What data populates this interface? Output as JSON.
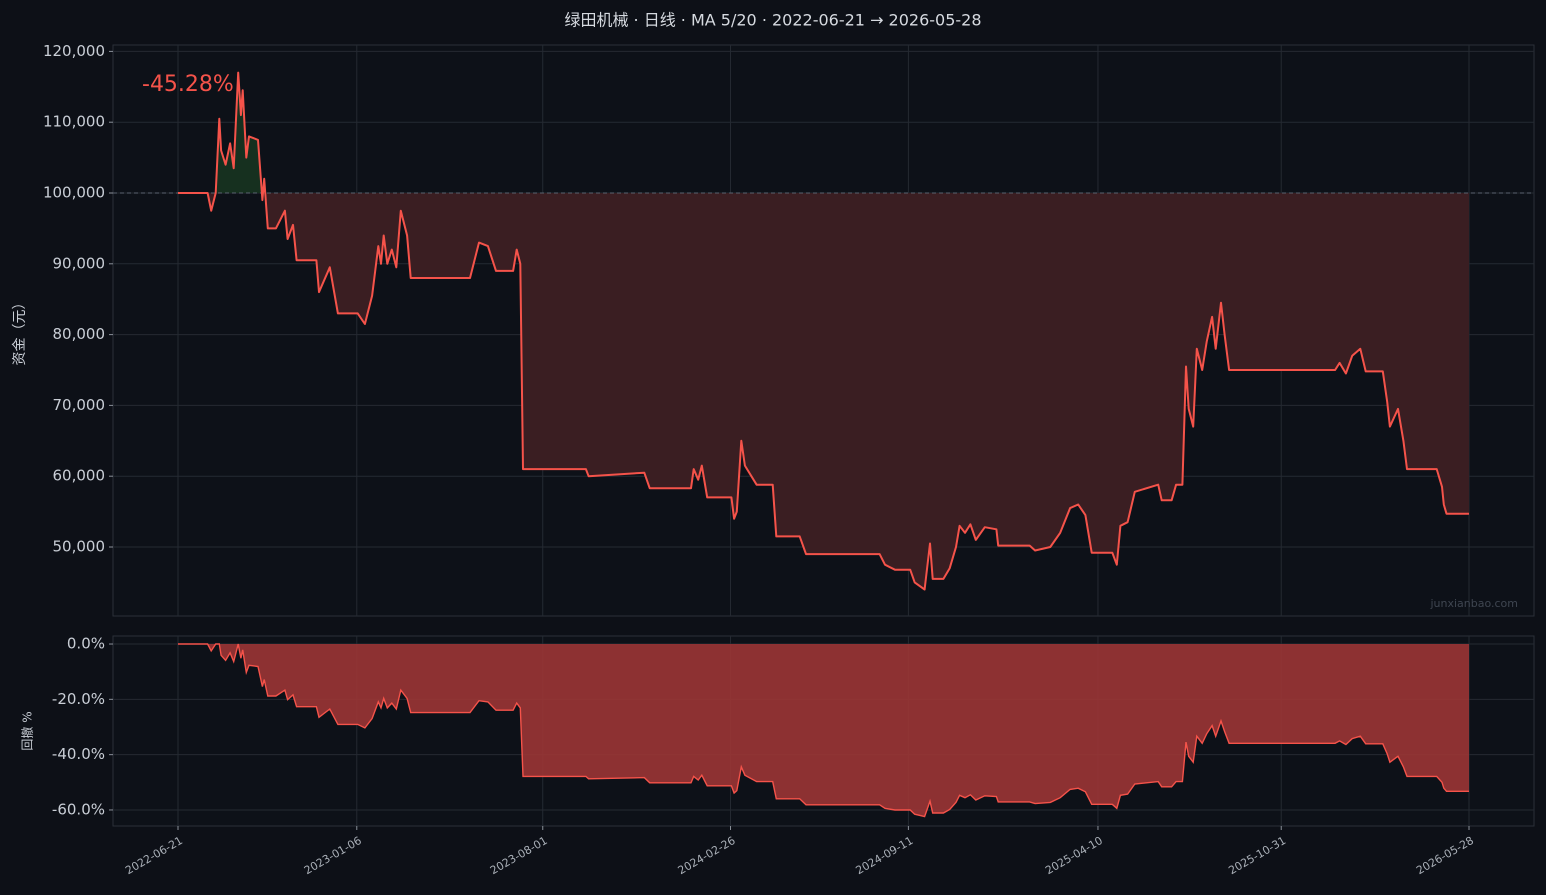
{
  "chart_data": [
    {
      "type": "line",
      "title": "绿田机械 · 日线 · MA 5/20 · 2022-06-21 → 2026-05-28",
      "ylabel": "资金（元）",
      "annotation": "-45.28%",
      "watermark": "junxianbao.com",
      "color": "#f5534a",
      "fill_above": "#16301f",
      "fill_below": "#3a1e22",
      "baseline": 100000,
      "grid": true,
      "xlim": [
        "2022-06-21",
        "2026-05-28"
      ],
      "xticks": [
        "2022-06-21",
        "2023-01-06",
        "2023-08-01",
        "2024-02-26",
        "2024-09-11",
        "2025-04-10",
        "2025-10-31",
        "2026-05-28"
      ],
      "ylim": [
        40254,
        120904
      ],
      "yticks": [
        {
          "value": 50000,
          "label": "50,000"
        },
        {
          "value": 60000,
          "label": "60,000"
        },
        {
          "value": 70000,
          "label": "70,000"
        },
        {
          "value": 80000,
          "label": "80,000"
        },
        {
          "value": 90000,
          "label": "90,000"
        },
        {
          "value": 100000,
          "label": "100,000"
        },
        {
          "value": 110000,
          "label": "110,000"
        },
        {
          "value": 120000,
          "label": "120,000"
        }
      ],
      "x": [
        "2022-06-21",
        "2022-07-24",
        "2022-07-28",
        "2022-08-02",
        "2022-08-06",
        "2022-08-08",
        "2022-08-13",
        "2022-08-18",
        "2022-08-22",
        "2022-08-27",
        "2022-08-30",
        "2022-09-01",
        "2022-09-05",
        "2022-09-08",
        "2022-09-18",
        "2022-09-23",
        "2022-09-25",
        "2022-09-29",
        "2022-10-08",
        "2022-10-18",
        "2022-10-21",
        "2022-10-27",
        "2022-10-31",
        "2022-11-22",
        "2022-11-25",
        "2022-12-07",
        "2022-12-16",
        "2023-01-07",
        "2023-01-15",
        "2023-01-23",
        "2023-01-30",
        "2023-02-02",
        "2023-02-05",
        "2023-02-09",
        "2023-02-14",
        "2023-02-19",
        "2023-02-24",
        "2023-03-03",
        "2023-03-07",
        "2023-05-12",
        "2023-05-22",
        "2023-06-01",
        "2023-06-10",
        "2023-06-29",
        "2023-07-03",
        "2023-07-07",
        "2023-07-10",
        "2023-09-18",
        "2023-09-21",
        "2023-11-22",
        "2023-11-28",
        "2024-01-13",
        "2024-01-16",
        "2024-01-21",
        "2024-01-25",
        "2024-01-31",
        "2024-02-27",
        "2024-03-01",
        "2024-03-04",
        "2024-03-09",
        "2024-03-13",
        "2024-03-26",
        "2024-04-13",
        "2024-04-17",
        "2024-05-13",
        "2024-05-20",
        "2024-08-10",
        "2024-08-16",
        "2024-08-27",
        "2024-09-13",
        "2024-09-18",
        "2024-09-29",
        "2024-10-05",
        "2024-10-08",
        "2024-10-20",
        "2024-10-27",
        "2024-11-03",
        "2024-11-07",
        "2024-11-13",
        "2024-11-19",
        "2024-11-25",
        "2024-12-05",
        "2024-12-18",
        "2024-12-20",
        "2025-01-24",
        "2025-01-30",
        "2025-02-16",
        "2025-02-27",
        "2025-03-10",
        "2025-03-19",
        "2025-03-27",
        "2025-04-03",
        "2025-04-26",
        "2025-05-01",
        "2025-05-05",
        "2025-05-13",
        "2025-05-21",
        "2025-06-16",
        "2025-06-20",
        "2025-07-01",
        "2025-07-06",
        "2025-07-13",
        "2025-07-17",
        "2025-07-20",
        "2025-07-25",
        "2025-07-29",
        "2025-08-04",
        "2025-08-09",
        "2025-08-15",
        "2025-08-19",
        "2025-08-25",
        "2025-08-29",
        "2025-09-03",
        "2025-12-30",
        "2026-01-04",
        "2026-01-11",
        "2026-01-18",
        "2026-01-27",
        "2026-02-02",
        "2026-02-21",
        "2026-02-26",
        "2026-03-01",
        "2026-03-10",
        "2026-03-16",
        "2026-03-20",
        "2026-04-22",
        "2026-04-28",
        "2026-04-30",
        "2026-05-03",
        "2026-05-28"
      ],
      "values": [
        100000,
        100000,
        97500,
        100000,
        110500,
        106000,
        104000,
        107000,
        103500,
        117000,
        111000,
        114500,
        105000,
        108000,
        107500,
        99000,
        102000,
        95000,
        95000,
        97500,
        93500,
        95500,
        90500,
        90500,
        86000,
        89500,
        83000,
        83000,
        81500,
        85500,
        92500,
        90000,
        94000,
        90000,
        92000,
        89500,
        97500,
        94000,
        88000,
        88000,
        93000,
        92500,
        89000,
        89000,
        92000,
        90000,
        61000,
        61000,
        60000,
        60500,
        58300,
        58300,
        61000,
        59500,
        61500,
        57000,
        57000,
        54000,
        55000,
        65000,
        61500,
        58800,
        58800,
        51500,
        51500,
        49000,
        49000,
        47500,
        46800,
        46800,
        45000,
        44000,
        50500,
        45500,
        45500,
        47000,
        50000,
        53000,
        52000,
        53200,
        51000,
        52800,
        52500,
        50200,
        50200,
        49500,
        50000,
        52000,
        55500,
        56000,
        54500,
        49200,
        49200,
        47500,
        53000,
        53500,
        57800,
        58800,
        56600,
        56600,
        58800,
        58800,
        75500,
        69500,
        67000,
        78000,
        75000,
        79000,
        82500,
        78000,
        84500,
        80000,
        75000,
        75000,
        76000,
        74500,
        77000,
        78000,
        74800,
        74800,
        70500,
        67000,
        69500,
        65000,
        61000,
        61000,
        58500,
        56000,
        54700,
        54700
      ]
    },
    {
      "type": "area",
      "ylabel": "回撤 %",
      "color": "#f5534a",
      "fill": "#9b3535",
      "grid": true,
      "xlim": [
        "2022-06-21",
        "2026-05-28"
      ],
      "xticks": [
        "2022-06-21",
        "2023-01-06",
        "2023-08-01",
        "2024-02-26",
        "2024-09-11",
        "2025-04-10",
        "2025-10-31",
        "2026-05-28"
      ],
      "ylim": [
        -65.8,
        2.9
      ],
      "yticks": [
        {
          "value": -60,
          "label": "-60.0%"
        },
        {
          "value": -40,
          "label": "-40.0%"
        },
        {
          "value": -20,
          "label": "-20.0%"
        },
        {
          "value": 0,
          "label": "0.0%"
        }
      ],
      "x": [
        "2022-06-21",
        "2022-07-24",
        "2022-07-28",
        "2022-08-02",
        "2022-08-06",
        "2022-08-08",
        "2022-08-13",
        "2022-08-18",
        "2022-08-22",
        "2022-08-27",
        "2022-08-30",
        "2022-09-01",
        "2022-09-05",
        "2022-09-08",
        "2022-09-18",
        "2022-09-23",
        "2022-09-25",
        "2022-09-29",
        "2022-10-08",
        "2022-10-18",
        "2022-10-21",
        "2022-10-27",
        "2022-10-31",
        "2022-11-22",
        "2022-11-25",
        "2022-12-07",
        "2022-12-16",
        "2023-01-07",
        "2023-01-15",
        "2023-01-23",
        "2023-01-30",
        "2023-02-02",
        "2023-02-05",
        "2023-02-09",
        "2023-02-14",
        "2023-02-19",
        "2023-02-24",
        "2023-03-03",
        "2023-03-07",
        "2023-05-12",
        "2023-05-22",
        "2023-06-01",
        "2023-06-10",
        "2023-06-29",
        "2023-07-03",
        "2023-07-07",
        "2023-07-10",
        "2023-09-18",
        "2023-09-21",
        "2023-11-22",
        "2023-11-28",
        "2024-01-13",
        "2024-01-16",
        "2024-01-21",
        "2024-01-25",
        "2024-01-31",
        "2024-02-27",
        "2024-03-01",
        "2024-03-04",
        "2024-03-09",
        "2024-03-13",
        "2024-03-26",
        "2024-04-13",
        "2024-04-17",
        "2024-05-13",
        "2024-05-20",
        "2024-08-10",
        "2024-08-16",
        "2024-08-27",
        "2024-09-13",
        "2024-09-18",
        "2024-09-29",
        "2024-10-05",
        "2024-10-08",
        "2024-10-20",
        "2024-10-27",
        "2024-11-03",
        "2024-11-07",
        "2024-11-13",
        "2024-11-19",
        "2024-11-25",
        "2024-12-05",
        "2024-12-18",
        "2024-12-20",
        "2025-01-24",
        "2025-01-30",
        "2025-02-16",
        "2025-02-27",
        "2025-03-10",
        "2025-03-19",
        "2025-03-27",
        "2025-04-03",
        "2025-04-26",
        "2025-05-01",
        "2025-05-05",
        "2025-05-13",
        "2025-05-21",
        "2025-06-16",
        "2025-06-20",
        "2025-07-01",
        "2025-07-06",
        "2025-07-13",
        "2025-07-17",
        "2025-07-20",
        "2025-07-25",
        "2025-07-29",
        "2025-08-04",
        "2025-08-09",
        "2025-08-15",
        "2025-08-19",
        "2025-08-25",
        "2025-08-29",
        "2025-09-03",
        "2025-12-30",
        "2026-01-04",
        "2026-01-11",
        "2026-01-18",
        "2026-01-27",
        "2026-02-02",
        "2026-02-21",
        "2026-02-26",
        "2026-03-01",
        "2026-03-10",
        "2026-03-16",
        "2026-03-20",
        "2026-04-22",
        "2026-04-28",
        "2026-04-30",
        "2026-05-03",
        "2026-05-28"
      ],
      "values": [
        0,
        0,
        -2.5,
        0,
        0,
        -4.07,
        -5.88,
        -3.17,
        -6.33,
        0,
        -5.13,
        -2.14,
        -10.26,
        -7.69,
        -8.12,
        -15.38,
        -12.82,
        -18.8,
        -18.8,
        -16.67,
        -20.09,
        -18.38,
        -22.65,
        -22.65,
        -26.5,
        -23.5,
        -29.06,
        -29.06,
        -30.34,
        -26.92,
        -20.94,
        -23.08,
        -19.66,
        -23.08,
        -21.37,
        -23.5,
        -16.67,
        -19.66,
        -24.79,
        -24.79,
        -20.51,
        -20.94,
        -23.93,
        -23.93,
        -21.37,
        -23.08,
        -47.86,
        -47.86,
        -48.72,
        -48.29,
        -50.17,
        -50.17,
        -47.86,
        -49.15,
        -47.44,
        -51.28,
        -51.28,
        -53.85,
        -52.99,
        -44.44,
        -47.44,
        -49.74,
        -49.74,
        -55.98,
        -55.98,
        -58.12,
        -58.12,
        -59.4,
        -60,
        -60,
        -61.54,
        -62.39,
        -56.84,
        -61.11,
        -61.11,
        -59.83,
        -57.26,
        -54.7,
        -55.56,
        -54.53,
        -56.41,
        -54.87,
        -55.13,
        -57.09,
        -57.09,
        -57.69,
        -57.26,
        -55.56,
        -52.56,
        -52.14,
        -53.42,
        -57.95,
        -57.95,
        -59.4,
        -54.7,
        -54.27,
        -50.6,
        -49.74,
        -51.62,
        -51.62,
        -49.74,
        -49.74,
        -35.47,
        -40.6,
        -42.74,
        -33.33,
        -35.9,
        -32.48,
        -29.49,
        -33.33,
        -27.78,
        -31.62,
        -35.9,
        -35.9,
        -35.04,
        -36.32,
        -34.19,
        -33.33,
        -36.07,
        -36.07,
        -39.74,
        -42.74,
        -40.6,
        -44.44,
        -47.86,
        -47.86,
        -50,
        -52.14,
        -53.25,
        -53.25
      ]
    }
  ]
}
